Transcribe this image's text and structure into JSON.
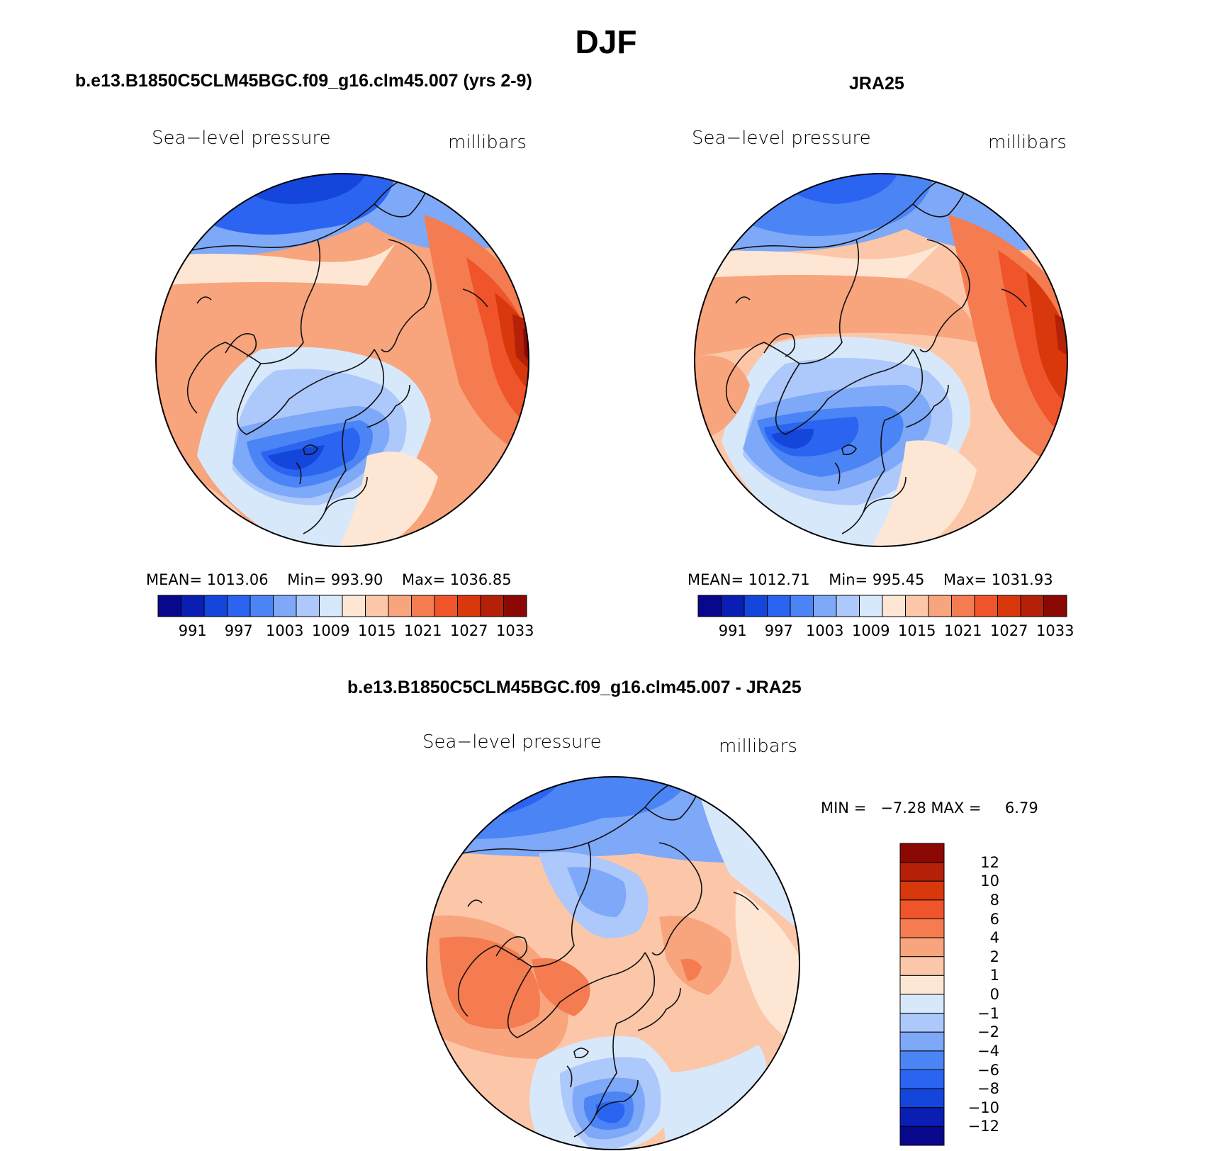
{
  "title": "DJF",
  "panels": [
    {
      "id": "model",
      "title": "b.e13.B1850C5CLM45BGC.f09_g16.clm45.007 (yrs 2-9)",
      "variable": "Sea−level pressure",
      "units": "millibars",
      "stats": {
        "mean_label": "MEAN=",
        "mean": "1013.06",
        "min_label": "Min=",
        "min": "993.90",
        "max_label": "Max=",
        "max": "1036.85"
      }
    },
    {
      "id": "obs",
      "title": "JRA25",
      "variable": "Sea−level pressure",
      "units": "millibars",
      "stats": {
        "mean_label": "MEAN=",
        "mean": "1012.71",
        "min_label": "Min=",
        "min": "995.45",
        "max_label": "Max=",
        "max": "1031.93"
      }
    },
    {
      "id": "diff",
      "title": "b.e13.B1850C5CLM45BGC.f09_g16.clm45.007 - JRA25",
      "variable": "Sea−level pressure",
      "units": "millibars",
      "stats": {
        "min_label": "MIN =",
        "min": "−7.28",
        "max_label": "MAX =",
        "max": "6.79"
      }
    }
  ],
  "colorbar_abs": {
    "colors": [
      "#08088c",
      "#0b1eb4",
      "#1446dc",
      "#2a64f0",
      "#4b84f4",
      "#7ea8f8",
      "#adc8fa",
      "#d8e8fb",
      "#fde7d4",
      "#fcc7a8",
      "#f8a47c",
      "#f47c50",
      "#f0542a",
      "#d8380c",
      "#b42008",
      "#8c0804"
    ],
    "tick_labels": [
      "991",
      "997",
      "1003",
      "1009",
      "1015",
      "1021",
      "1027",
      "1033"
    ]
  },
  "colorbar_diff": {
    "colors": [
      "#08088c",
      "#0b1eb4",
      "#1446dc",
      "#2a64f0",
      "#4b84f4",
      "#7ea8f8",
      "#adc8fa",
      "#d8e8fb",
      "#fde7d4",
      "#fcc7a8",
      "#f8a47c",
      "#f47c50",
      "#f0542a",
      "#d8380c",
      "#b42008",
      "#8c0804"
    ],
    "tick_labels": [
      "12",
      "10",
      "8",
      "6",
      "4",
      "2",
      "1",
      "0",
      "−1",
      "−2",
      "−4",
      "−6",
      "−8",
      "−10",
      "−12"
    ]
  }
}
